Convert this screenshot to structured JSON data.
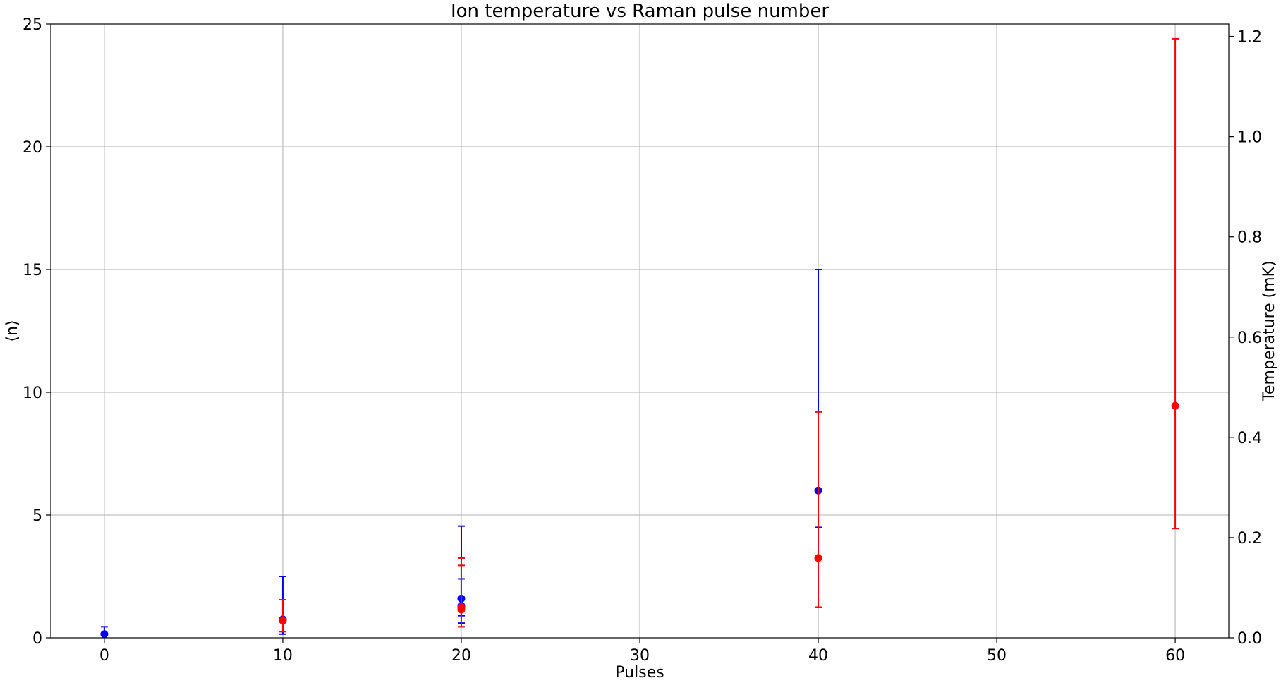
{
  "chart_data": {
    "type": "scatter",
    "title": "Ion temperature vs Raman pulse number",
    "xlabel": "Pulses",
    "ylabel": "⟨n⟩",
    "y2label": "Temperature (mK)",
    "xlim": [
      -3,
      63
    ],
    "ylim": [
      0,
      25
    ],
    "y2lim": [
      0,
      1.2247
    ],
    "xticks": [
      0,
      10,
      20,
      30,
      40,
      50,
      60
    ],
    "yticks": [
      0,
      5,
      10,
      15,
      20,
      25
    ],
    "y2ticks": [
      0.0,
      0.2,
      0.4,
      0.6,
      0.8,
      1.0,
      1.2
    ],
    "grid": true,
    "series": [
      {
        "color": "#0000ff",
        "points": [
          {
            "x": 0,
            "y": 0.15,
            "yerr_low": 0.15,
            "yerr_high": 0.45
          },
          {
            "x": 10,
            "y": 0.75,
            "yerr_low": 0.15,
            "yerr_high": 2.5
          },
          {
            "x": 20,
            "y": 1.6,
            "yerr_low": 0.9,
            "yerr_high": 4.55
          },
          {
            "x": 20,
            "y": 1.3,
            "yerr_low": 0.6,
            "yerr_high": 2.4
          },
          {
            "x": 40,
            "y": 6.0,
            "yerr_low": 4.5,
            "yerr_high": 15.0
          }
        ]
      },
      {
        "color": "#ff0000",
        "points": [
          {
            "x": 10,
            "y": 0.7,
            "yerr_low": 0.25,
            "yerr_high": 1.55
          },
          {
            "x": 20,
            "y": 1.15,
            "yerr_low": 0.45,
            "yerr_high": 2.95
          },
          {
            "x": 20,
            "y": 1.25,
            "yerr_low": 0.45,
            "yerr_high": 3.25
          },
          {
            "x": 40,
            "y": 3.25,
            "yerr_low": 1.25,
            "yerr_high": 9.2
          },
          {
            "x": 60,
            "y": 9.45,
            "yerr_low": 4.45,
            "yerr_high": 24.4
          }
        ]
      }
    ]
  }
}
